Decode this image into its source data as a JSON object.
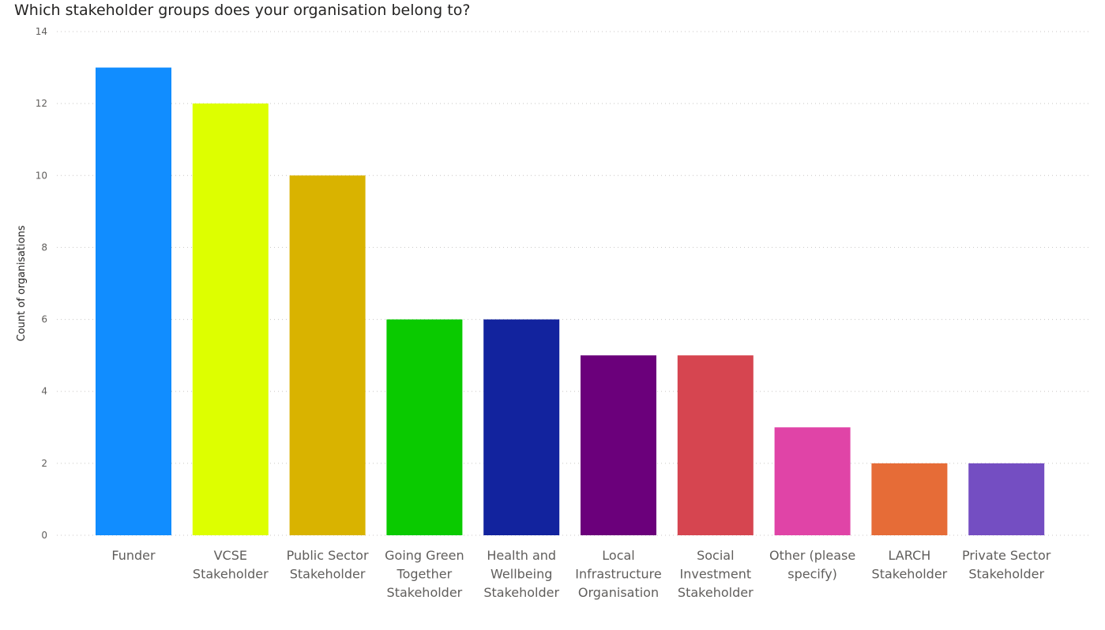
{
  "chart_data": {
    "type": "bar",
    "title": "Which stakeholder groups does your organisation belong to?",
    "ylabel": "Count of organisations",
    "xlabel": "",
    "ylim": [
      0,
      14
    ],
    "yticks": [
      0,
      2,
      4,
      6,
      8,
      10,
      12,
      14
    ],
    "grid": true,
    "categories": [
      [
        "Funder"
      ],
      [
        "VCSE",
        "Stakeholder"
      ],
      [
        "Public Sector",
        "Stakeholder"
      ],
      [
        "Going Green",
        "Together",
        "Stakeholder"
      ],
      [
        "Health and",
        "Wellbeing",
        "Stakeholder"
      ],
      [
        "Local",
        "Infrastructure",
        "Organisation"
      ],
      [
        "Social",
        "Investment",
        "Stakeholder"
      ],
      [
        "Other (please",
        "specify)"
      ],
      [
        "LARCH",
        "Stakeholder"
      ],
      [
        "Private Sector",
        "Stakeholder"
      ]
    ],
    "values": [
      13,
      12,
      10,
      6,
      6,
      5,
      5,
      3,
      2,
      2
    ],
    "colors": [
      "#118DFF",
      "#DDFF00",
      "#D9B300",
      "#0ACA00",
      "#12239E",
      "#6B007B",
      "#D64550",
      "#E044A7",
      "#E66C37",
      "#744EC2"
    ]
  }
}
